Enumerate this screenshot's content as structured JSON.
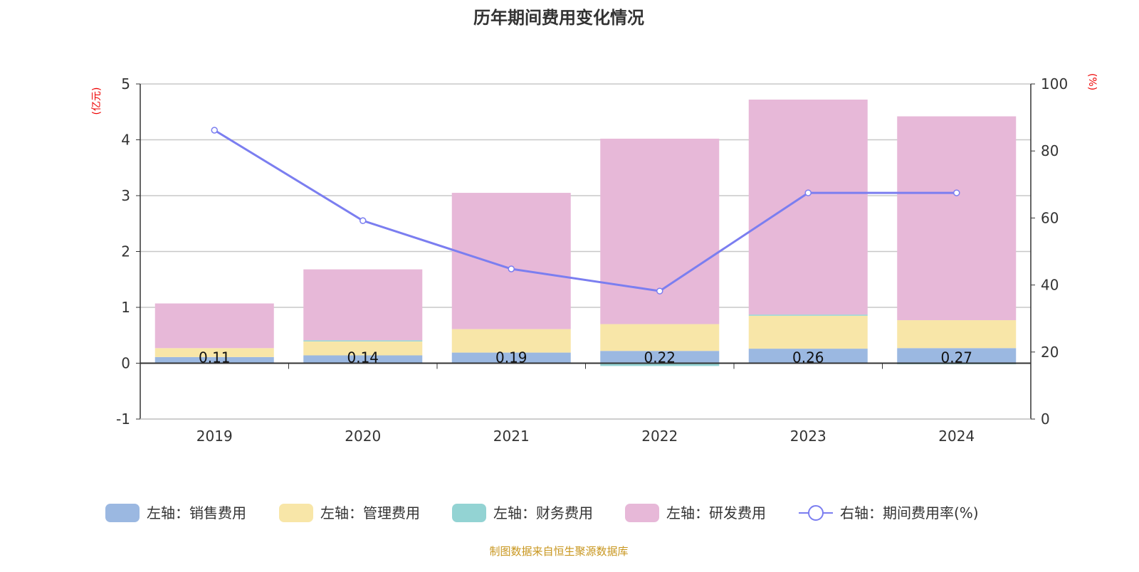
{
  "chart_data": {
    "type": "bar",
    "title": "历年期间费用变化情况",
    "left_axis_unit": "(亿元)",
    "right_axis_unit": "(%)",
    "categories": [
      "2019",
      "2020",
      "2021",
      "2022",
      "2023",
      "2024"
    ],
    "ylim_left": [
      -1,
      5
    ],
    "yticks_left": [
      "-1",
      "0",
      "1",
      "2",
      "3",
      "4",
      "5"
    ],
    "ylim_right": [
      0,
      100
    ],
    "yticks_right": [
      "0",
      "20",
      "40",
      "60",
      "80",
      "100"
    ],
    "grid": true,
    "legend_position": "bottom",
    "series": [
      {
        "name": "左轴：销售费用",
        "type": "bar",
        "axis": "left",
        "color": "#9bb8e1",
        "values": [
          0.11,
          0.14,
          0.19,
          0.22,
          0.26,
          0.27
        ],
        "labels": [
          "0.11",
          "0.14",
          "0.19",
          "0.22",
          "0.26",
          "0.27"
        ]
      },
      {
        "name": "左轴：管理费用",
        "type": "bar",
        "axis": "left",
        "color": "#f8e6a8",
        "values": [
          0.16,
          0.25,
          0.42,
          0.48,
          0.59,
          0.5
        ]
      },
      {
        "name": "左轴：财务费用",
        "type": "bar",
        "axis": "left",
        "color": "#93d3d3",
        "values": [
          0.0,
          0.02,
          0.0,
          -0.05,
          0.02,
          -0.01
        ]
      },
      {
        "name": "左轴：研发费用",
        "type": "bar",
        "axis": "left",
        "color": "#e7b8d8",
        "values": [
          0.8,
          1.27,
          2.44,
          3.32,
          3.85,
          3.65
        ]
      },
      {
        "name": "右轴：期间费用率(%)",
        "type": "line",
        "axis": "right",
        "color": "#7b7ef0",
        "values": [
          86.2,
          59.2,
          44.8,
          38.2,
          67.5,
          67.5
        ]
      }
    ]
  },
  "footer": {
    "source": "制图数据来自恒生聚源数据库"
  }
}
